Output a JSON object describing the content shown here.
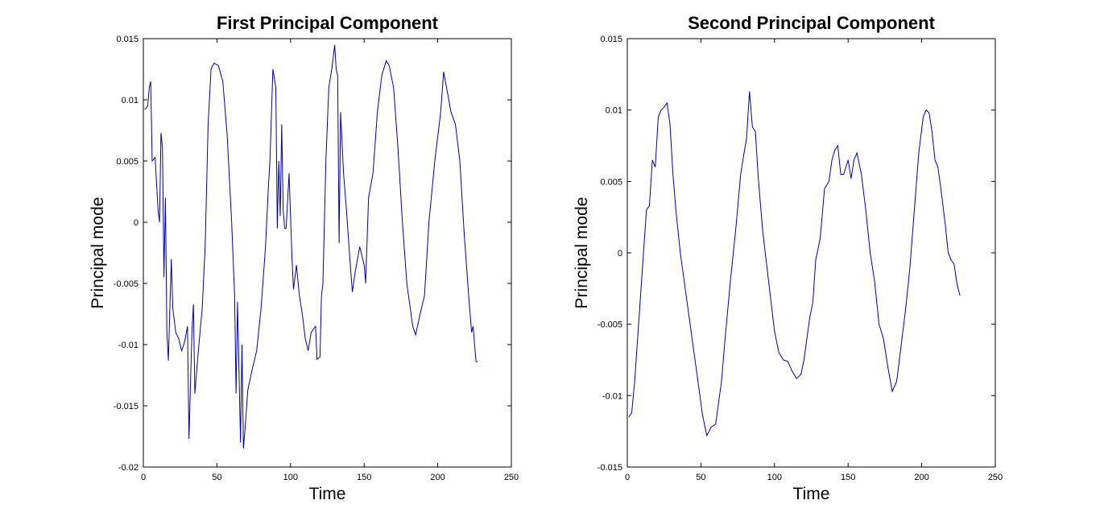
{
  "chart_data": [
    {
      "type": "line",
      "title": "First Principal Component",
      "x_label": "Time",
      "y_label": "Principal mode",
      "xlim": [
        0,
        250
      ],
      "xticks": [
        0,
        50,
        100,
        150,
        200,
        250
      ],
      "ylim": [
        -0.02,
        0.015
      ],
      "yticks": [
        -0.02,
        -0.015,
        -0.01,
        -0.005,
        0,
        0.005,
        0.01,
        0.015
      ],
      "color": "#0000a8",
      "x": [
        1,
        3,
        4,
        5,
        6,
        8,
        10,
        11,
        12,
        13,
        14,
        15,
        16,
        17,
        19,
        20,
        22,
        24,
        26,
        28,
        30,
        31,
        33,
        34,
        35,
        37,
        40,
        42,
        44,
        46,
        48,
        51,
        54,
        57,
        60,
        62,
        63,
        64,
        66,
        67,
        68,
        69,
        71,
        74,
        77,
        80,
        83,
        85,
        86,
        88,
        90,
        91,
        92,
        93,
        94,
        95,
        96,
        97,
        99,
        101,
        102,
        104,
        106,
        108,
        110,
        112,
        114,
        117,
        118,
        120,
        121,
        122,
        124,
        126,
        128,
        130,
        131,
        132,
        133,
        134,
        136,
        138,
        140,
        142,
        144,
        147,
        150,
        151,
        153,
        156,
        159,
        162,
        165,
        167,
        170,
        173,
        176,
        179,
        183,
        185,
        188,
        191,
        194,
        198,
        202,
        204,
        206,
        209,
        212,
        215,
        218,
        221,
        223,
        224,
        226,
        227
      ],
      "values": [
        0.0092,
        0.0095,
        0.011,
        0.0115,
        0.005,
        0.0053,
        0.001,
        0.0,
        0.0073,
        0.006,
        -0.0045,
        0.002,
        -0.009,
        -0.0113,
        -0.003,
        -0.007,
        -0.009,
        -0.0095,
        -0.0105,
        -0.0098,
        -0.0085,
        -0.0177,
        -0.009,
        -0.0067,
        -0.014,
        -0.011,
        -0.007,
        -0.002,
        0.008,
        0.0125,
        0.013,
        0.0128,
        0.0115,
        0.007,
        0.0,
        -0.006,
        -0.014,
        -0.0065,
        -0.018,
        -0.01,
        -0.0185,
        -0.017,
        -0.0137,
        -0.012,
        -0.0105,
        -0.007,
        -0.002,
        0.003,
        0.005,
        0.0125,
        0.011,
        -0.0005,
        0.005,
        0.0005,
        0.008,
        0.001,
        -0.0005,
        -0.0005,
        0.004,
        -0.003,
        -0.0055,
        -0.0035,
        -0.006,
        -0.0075,
        -0.0095,
        -0.0105,
        -0.009,
        -0.0085,
        -0.0112,
        -0.011,
        -0.006,
        -0.005,
        0.005,
        0.011,
        0.0125,
        0.0145,
        0.0125,
        0.012,
        -0.0017,
        0.009,
        0.004,
        0.001,
        -0.0025,
        -0.0057,
        -0.004,
        -0.002,
        -0.0035,
        -0.005,
        0.002,
        0.004,
        0.009,
        0.012,
        0.0132,
        0.0128,
        0.011,
        0.006,
        0.0,
        -0.005,
        -0.0085,
        -0.0092,
        -0.0075,
        -0.006,
        0.0,
        0.005,
        0.009,
        0.0123,
        0.011,
        0.009,
        0.008,
        0.005,
        -0.001,
        -0.006,
        -0.009,
        -0.0085,
        -0.0114,
        -0.0114
      ]
    },
    {
      "type": "line",
      "title": "Second Principal Component",
      "x_label": "Time",
      "y_label": "Principal mode",
      "xlim": [
        0,
        250
      ],
      "xticks": [
        0,
        50,
        100,
        150,
        200,
        250
      ],
      "ylim": [
        -0.015,
        0.015
      ],
      "yticks": [
        -0.015,
        -0.01,
        -0.005,
        0,
        0.005,
        0.01,
        0.015
      ],
      "color": "#0000a8",
      "x": [
        1,
        3,
        5,
        7,
        9,
        11,
        13,
        15,
        17,
        19,
        21,
        23,
        25,
        27,
        29,
        31,
        33,
        36,
        40,
        44,
        48,
        51,
        54,
        57,
        60,
        62,
        64,
        66,
        70,
        74,
        77,
        79,
        81,
        83,
        85,
        87,
        89,
        92,
        96,
        100,
        103,
        106,
        109,
        112,
        115,
        118,
        120,
        122,
        124,
        126,
        128,
        131,
        134,
        137,
        139,
        141,
        143,
        145,
        147,
        150,
        152,
        154,
        156,
        159,
        162,
        165,
        168,
        171,
        174,
        177,
        180,
        183,
        186,
        189,
        192,
        195,
        198,
        201,
        203,
        205,
        207,
        209,
        211,
        213,
        216,
        218,
        220,
        222,
        224,
        226
      ],
      "values": [
        -0.0115,
        -0.0112,
        -0.009,
        -0.006,
        -0.003,
        0.0,
        0.003,
        0.0033,
        0.0065,
        0.006,
        0.0095,
        0.01,
        0.0102,
        0.0105,
        0.009,
        0.0055,
        0.003,
        0.0,
        -0.003,
        -0.006,
        -0.009,
        -0.0113,
        -0.0128,
        -0.0122,
        -0.012,
        -0.0105,
        -0.009,
        -0.0065,
        -0.002,
        0.002,
        0.0055,
        0.0068,
        0.008,
        0.0113,
        0.0088,
        0.0085,
        0.0052,
        0.0015,
        -0.002,
        -0.0055,
        -0.007,
        -0.0075,
        -0.0076,
        -0.0083,
        -0.0088,
        -0.0085,
        -0.0075,
        -0.006,
        -0.0045,
        -0.0035,
        -0.0005,
        0.001,
        0.0045,
        0.005,
        0.0065,
        0.0072,
        0.0075,
        0.0055,
        0.0055,
        0.0065,
        0.0052,
        0.0065,
        0.007,
        0.0055,
        0.003,
        0.0,
        -0.002,
        -0.005,
        -0.006,
        -0.008,
        -0.0097,
        -0.009,
        -0.0065,
        -0.004,
        -0.001,
        0.003,
        0.007,
        0.0095,
        0.01,
        0.0098,
        0.0085,
        0.0065,
        0.006,
        0.0045,
        0.002,
        0.0,
        -0.0005,
        -0.0008,
        -0.0022,
        -0.003
      ]
    }
  ]
}
